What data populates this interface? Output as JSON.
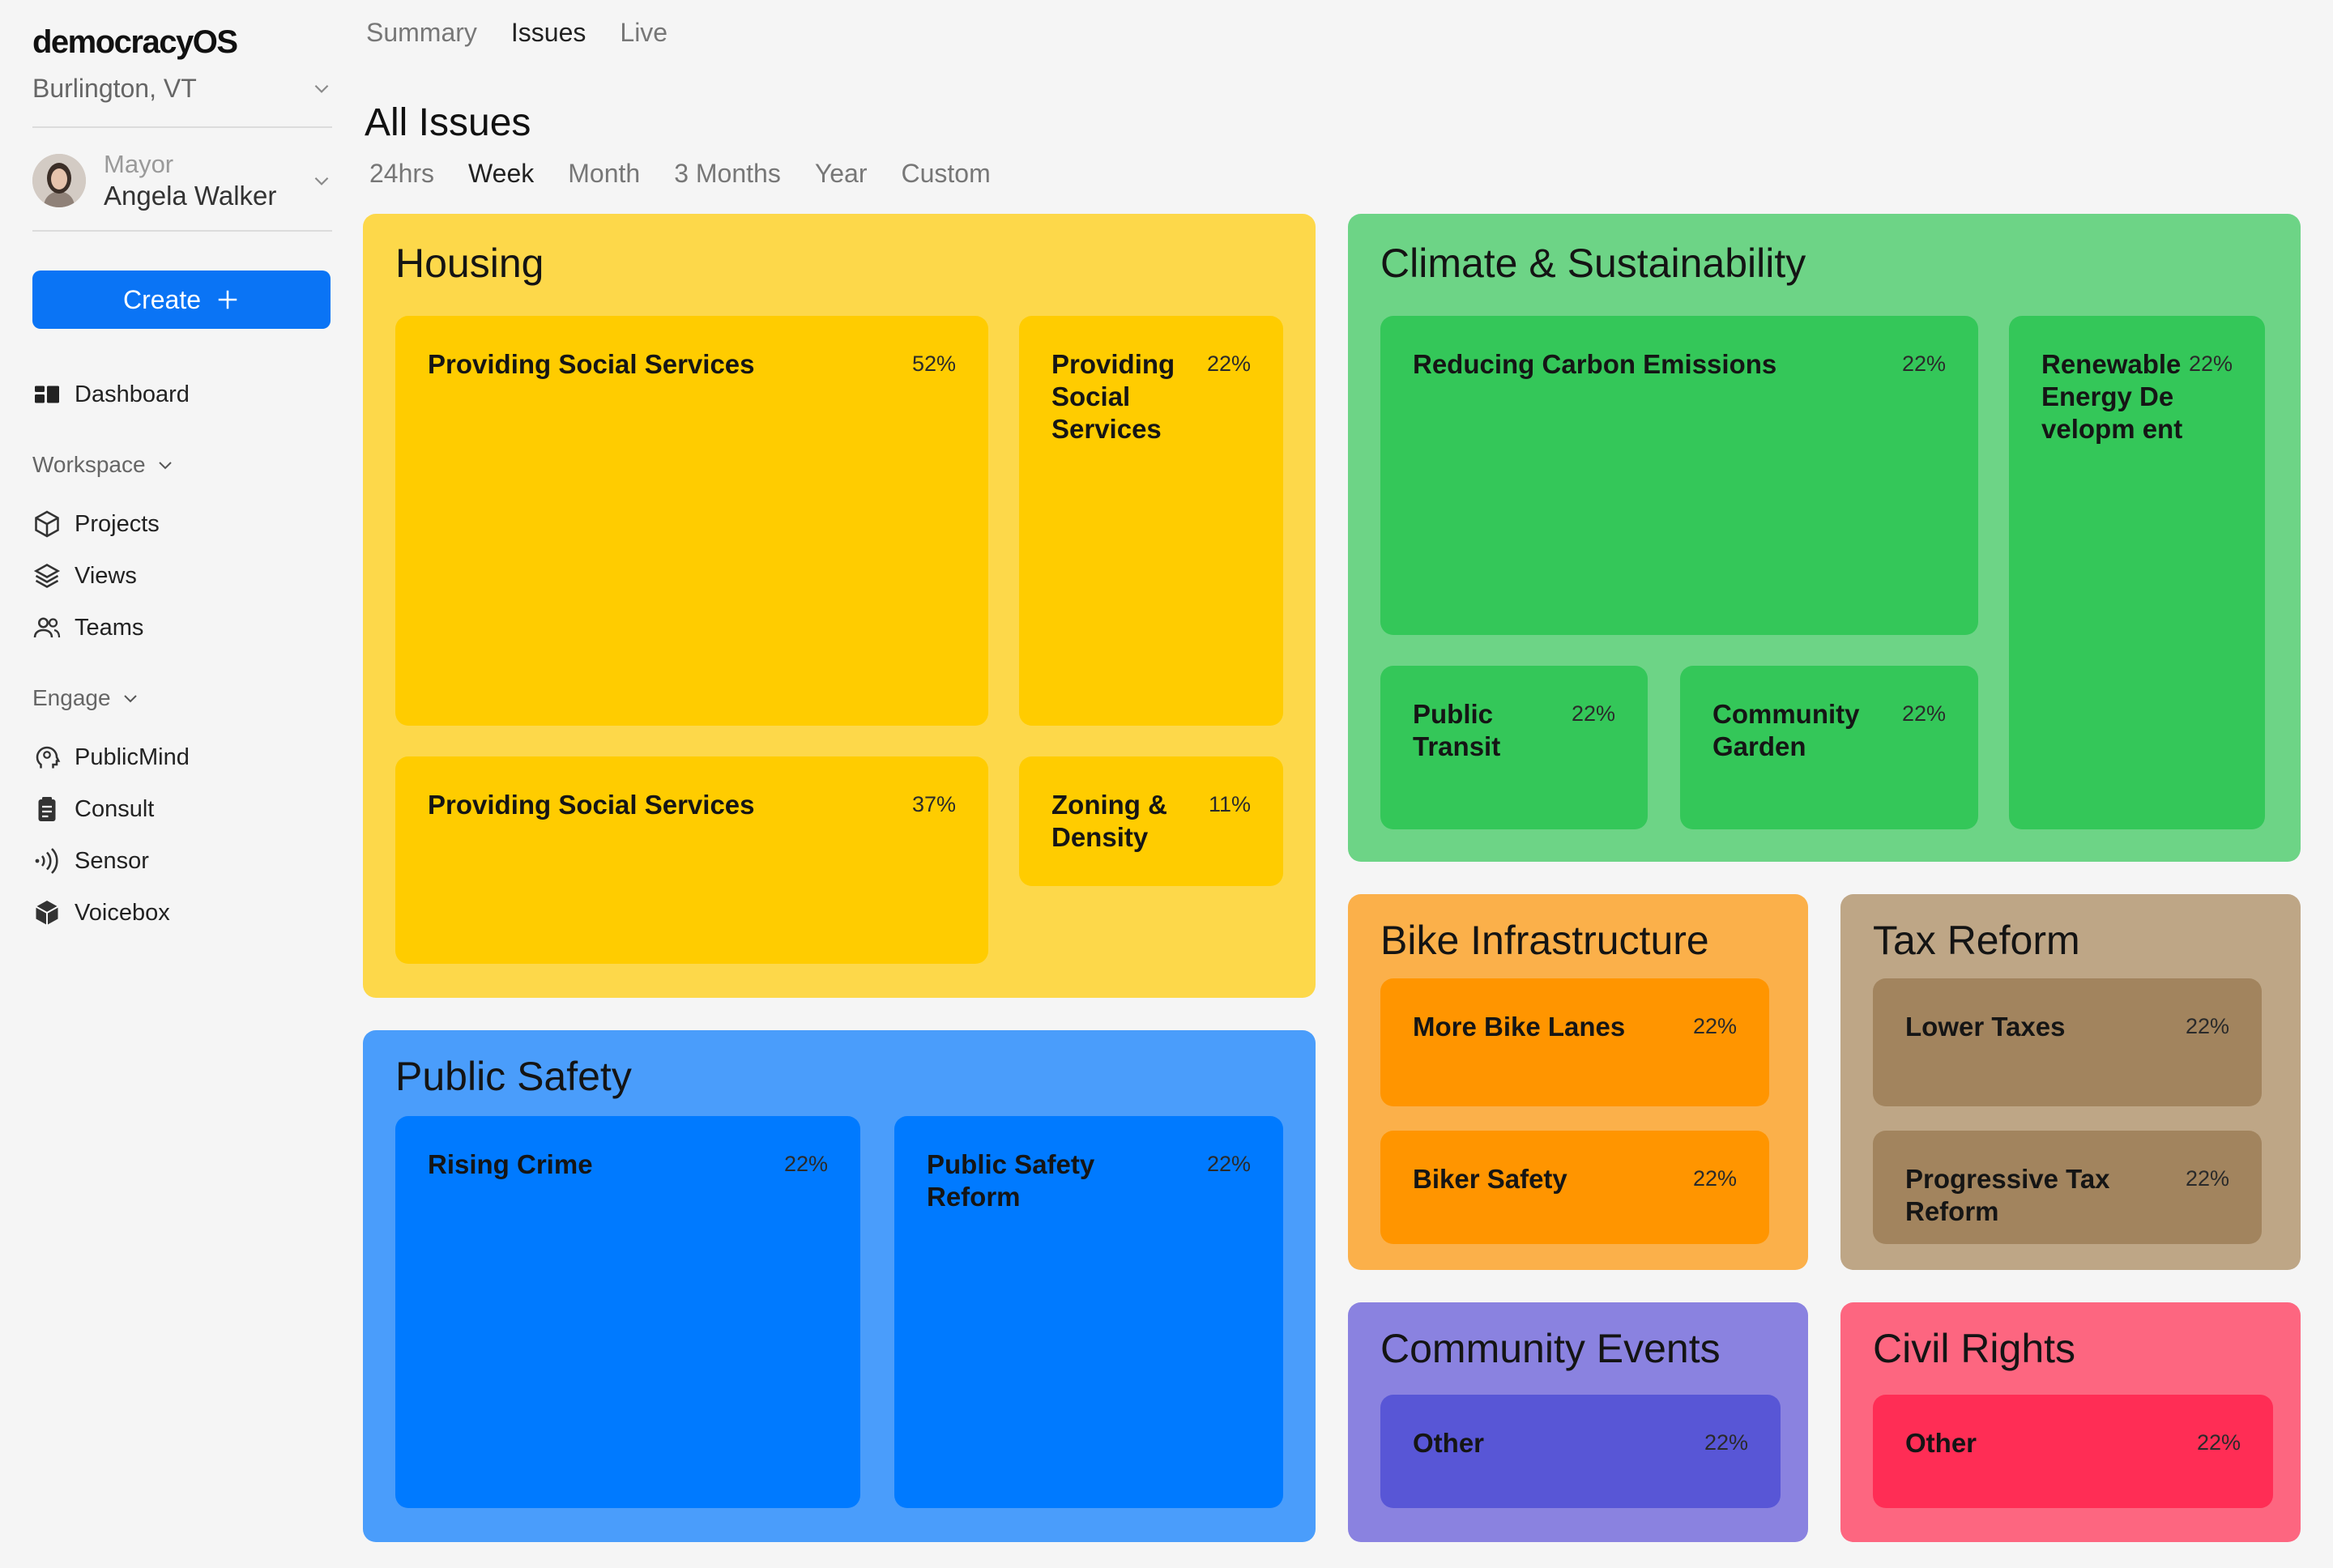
{
  "app": {
    "logo_text": "democracyOS",
    "org_name": "Burlington, VT",
    "user_role": "Mayor",
    "user_name": "Angela Walker",
    "create_label": "Create"
  },
  "sidebar": {
    "dashboard": "Dashboard",
    "workspace_label": "Workspace",
    "workspace_items": [
      "Projects",
      "Views",
      "Teams"
    ],
    "engage_label": "Engage",
    "engage_items": [
      "PublicMind",
      "Consult",
      "Sensor",
      "Voicebox"
    ]
  },
  "top_tabs": [
    "Summary",
    "Issues",
    "Live"
  ],
  "top_tab_active": "Issues",
  "page_title": "All Issues",
  "time_tabs": [
    "24hrs",
    "Week",
    "Month",
    "3 Months",
    "Year",
    "Custom"
  ],
  "time_tab_active": "Week",
  "colors": {
    "accent_blue": "#0a74f5",
    "housing_bg": "#fdd84a",
    "housing_tile": "#ffcc00",
    "climate_bg": "#6dd486",
    "climate_tile": "#34c759",
    "bike_bg": "#fbb04a",
    "bike_tile": "#ff9500",
    "tax_bg": "#bea686",
    "tax_tile": "#a2845e",
    "safety_bg": "#4a9dfb",
    "safety_tile": "#007aff",
    "events_bg": "#8a82e0",
    "events_tile": "#5856d6",
    "rights_bg": "#fd6680",
    "rights_tile": "#ff2d55"
  },
  "categories": {
    "housing": {
      "title": "Housing",
      "tiles": [
        {
          "label": "Providing Social Services",
          "pct": "52%"
        },
        {
          "label": "Providing Social Services",
          "pct": "22%"
        },
        {
          "label": "Providing Social Services",
          "pct": "37%"
        },
        {
          "label": "Zoning & Density",
          "pct": "11%"
        }
      ]
    },
    "climate": {
      "title": "Climate & Sustainability",
      "tiles": [
        {
          "label": "Reducing Carbon Emissions",
          "pct": "22%"
        },
        {
          "label": "Renewable Energy Developm ent",
          "pct": "22%"
        },
        {
          "label": "Public Transit",
          "pct": "22%"
        },
        {
          "label": "Community Garden",
          "pct": "22%"
        }
      ]
    },
    "bike": {
      "title": "Bike Infrastructure",
      "tiles": [
        {
          "label": "More Bike Lanes",
          "pct": "22%"
        },
        {
          "label": "Biker Safety",
          "pct": "22%"
        }
      ]
    },
    "tax": {
      "title": "Tax Reform",
      "tiles": [
        {
          "label": "Lower Taxes",
          "pct": "22%"
        },
        {
          "label": "Progressive Tax Reform",
          "pct": "22%"
        }
      ]
    },
    "safety": {
      "title": "Public Safety",
      "tiles": [
        {
          "label": "Rising Crime",
          "pct": "22%"
        },
        {
          "label": "Public Safety Reform",
          "pct": "22%"
        }
      ]
    },
    "events": {
      "title": "Community Events",
      "tiles": [
        {
          "label": "Other",
          "pct": "22%"
        }
      ]
    },
    "rights": {
      "title": "Civil Rights",
      "tiles": [
        {
          "label": "Other",
          "pct": "22%"
        }
      ]
    }
  }
}
